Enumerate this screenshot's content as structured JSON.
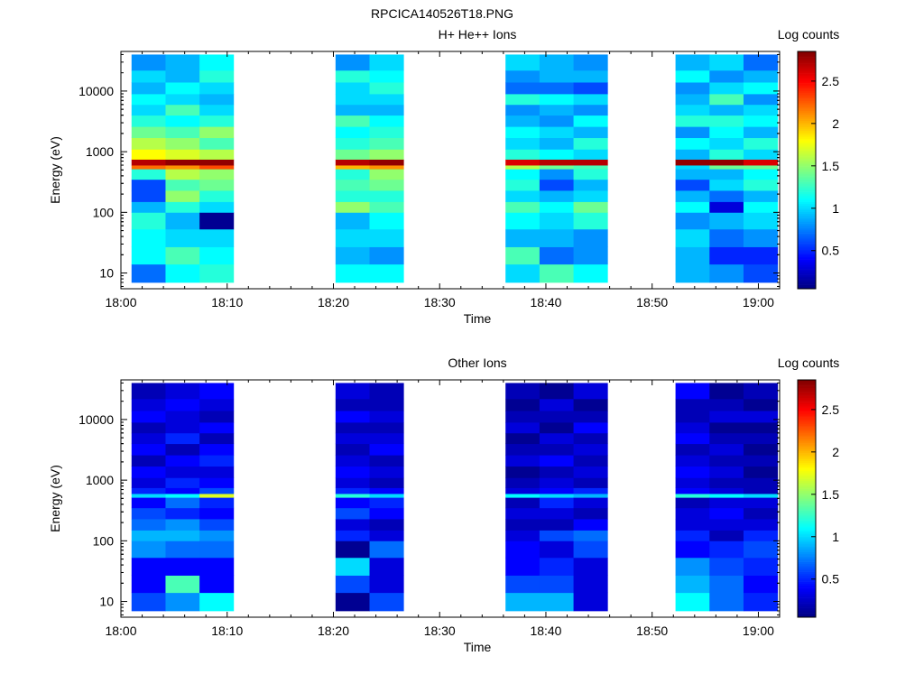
{
  "figure_title": "RPCICA140526T18.PNG",
  "colorbar_ticks": [
    "0.5",
    "1",
    "1.5",
    "2",
    "2.5"
  ],
  "colorbar_range": [
    0.05,
    2.85
  ],
  "chart_data": [
    {
      "type": "heatmap",
      "title": "H+ He++ Ions",
      "xlabel": "Time",
      "ylabel": "Energy (eV)",
      "colorbar_label": "Log counts",
      "x_range_min": [
        0,
        62
      ],
      "y_scale": "log",
      "y_range": [
        5.5,
        45000
      ],
      "x_ticks": [
        "18:00",
        "18:10",
        "18:20",
        "18:30",
        "18:40",
        "18:50",
        "19:00"
      ],
      "x_tick_values_min": [
        0,
        10,
        20,
        30,
        40,
        50,
        60
      ],
      "y_ticks": [
        "10",
        "100",
        "1000",
        "10000"
      ],
      "y_tick_values": [
        10,
        100,
        1000,
        10000
      ],
      "colormap": "jet",
      "time_bins_min": [
        [
          1,
          4.2
        ],
        [
          4.2,
          7.4
        ],
        [
          7.4,
          10.6
        ],
        [
          20.2,
          23.4
        ],
        [
          23.4,
          26.6
        ],
        [
          36.2,
          39.4
        ],
        [
          39.4,
          42.6
        ],
        [
          42.6,
          45.8
        ],
        [
          52.2,
          55.4
        ],
        [
          55.4,
          58.6
        ],
        [
          58.6,
          61.8
        ]
      ],
      "energy_bins_ev": [
        [
          7,
          14
        ],
        [
          14,
          27
        ],
        [
          27,
          53
        ],
        [
          53,
          100
        ],
        [
          100,
          150
        ],
        [
          150,
          230
        ],
        [
          230,
          350
        ],
        [
          350,
          520
        ],
        [
          520,
          600
        ],
        [
          600,
          750
        ],
        [
          750,
          1100
        ],
        [
          1100,
          1700
        ],
        [
          1700,
          2600
        ],
        [
          2600,
          4000
        ],
        [
          4000,
          6000
        ],
        [
          6000,
          9000
        ],
        [
          9000,
          14000
        ],
        [
          14000,
          22000
        ],
        [
          22000,
          40000
        ]
      ],
      "values_log_counts": [
        [
          0.7,
          1.1,
          1.1,
          1.2,
          0.9,
          0.6,
          0.6,
          1.2,
          2.2,
          2.7,
          1.8,
          1.6,
          1.4,
          1.2,
          1.0,
          1.1,
          0.9,
          1.0,
          0.8
        ],
        [
          1.1,
          1.3,
          1.0,
          0.9,
          1.2,
          1.5,
          1.3,
          1.6,
          2.1,
          2.8,
          1.7,
          1.5,
          1.3,
          1.1,
          1.3,
          1.0,
          1.1,
          0.9,
          0.9
        ],
        [
          1.2,
          1.1,
          1.0,
          0.1,
          1.0,
          1.2,
          1.4,
          1.5,
          2.3,
          2.8,
          1.6,
          1.3,
          1.5,
          1.2,
          1.0,
          0.9,
          1.0,
          1.2,
          1.1
        ],
        [
          1.1,
          0.9,
          1.0,
          0.9,
          1.5,
          1.2,
          1.3,
          1.2,
          2.0,
          2.7,
          1.4,
          1.2,
          1.1,
          1.3,
          0.9,
          1.0,
          1.0,
          1.2,
          0.8
        ],
        [
          1.1,
          0.8,
          1.0,
          1.1,
          1.3,
          1.2,
          1.4,
          1.5,
          2.1,
          2.8,
          1.5,
          1.3,
          1.2,
          1.1,
          0.9,
          1.0,
          1.2,
          1.1,
          1.0
        ],
        [
          1.0,
          1.3,
          0.9,
          1.1,
          1.3,
          1.0,
          1.2,
          1.1,
          1.6,
          2.6,
          1.2,
          1.0,
          1.1,
          0.9,
          0.8,
          1.2,
          0.7,
          0.8,
          1.0
        ],
        [
          1.3,
          0.7,
          0.9,
          1.0,
          1.1,
          0.9,
          0.6,
          0.8,
          1.4,
          2.7,
          1.1,
          0.9,
          1.0,
          0.8,
          0.9,
          1.1,
          0.7,
          0.9,
          0.9
        ],
        [
          1.1,
          0.8,
          0.8,
          1.2,
          1.4,
          1.0,
          0.9,
          1.2,
          1.3,
          2.7,
          1.0,
          1.2,
          0.9,
          1.1,
          0.8,
          1.0,
          0.6,
          0.9,
          0.8
        ],
        [
          0.9,
          0.9,
          1.0,
          0.8,
          1.1,
          0.9,
          0.6,
          0.9,
          1.0,
          2.8,
          0.9,
          1.1,
          0.8,
          1.2,
          1.0,
          0.9,
          0.8,
          1.1,
          0.9
        ],
        [
          0.8,
          0.5,
          0.7,
          0.9,
          0.3,
          0.7,
          1.0,
          0.9,
          1.4,
          2.8,
          1.2,
          1.0,
          1.1,
          1.2,
          0.9,
          1.3,
          1.0,
          0.8,
          1.0
        ],
        [
          0.6,
          0.5,
          0.8,
          1.0,
          1.1,
          0.9,
          1.2,
          1.1,
          1.4,
          2.6,
          1.0,
          1.2,
          0.9,
          1.1,
          1.0,
          0.8,
          1.1,
          0.9,
          0.7
        ]
      ]
    },
    {
      "type": "heatmap",
      "title": "Other Ions",
      "xlabel": "Time",
      "ylabel": "Energy (eV)",
      "colorbar_label": "Log counts",
      "x_range_min": [
        0,
        62
      ],
      "y_scale": "log",
      "y_range": [
        5.5,
        45000
      ],
      "x_ticks": [
        "18:00",
        "18:10",
        "18:20",
        "18:30",
        "18:40",
        "18:50",
        "19:00"
      ],
      "x_tick_values_min": [
        0,
        10,
        20,
        30,
        40,
        50,
        60
      ],
      "y_ticks": [
        "10",
        "100",
        "1000",
        "10000"
      ],
      "y_tick_values": [
        10,
        100,
        1000,
        10000
      ],
      "colormap": "jet",
      "time_bins_min": [
        [
          1,
          4.2
        ],
        [
          4.2,
          7.4
        ],
        [
          7.4,
          10.6
        ],
        [
          20.2,
          23.4
        ],
        [
          23.4,
          26.6
        ],
        [
          36.2,
          39.4
        ],
        [
          39.4,
          42.6
        ],
        [
          42.6,
          45.8
        ],
        [
          52.2,
          55.4
        ],
        [
          55.4,
          58.6
        ],
        [
          58.6,
          61.8
        ]
      ],
      "energy_bins_ev": [
        [
          7,
          14
        ],
        [
          14,
          27
        ],
        [
          27,
          53
        ],
        [
          53,
          100
        ],
        [
          100,
          150
        ],
        [
          150,
          230
        ],
        [
          230,
          350
        ],
        [
          350,
          520
        ],
        [
          520,
          600
        ],
        [
          600,
          750
        ],
        [
          750,
          1100
        ],
        [
          1100,
          1700
        ],
        [
          1700,
          2600
        ],
        [
          2600,
          4000
        ],
        [
          4000,
          6000
        ],
        [
          6000,
          9000
        ],
        [
          9000,
          14000
        ],
        [
          14000,
          22000
        ],
        [
          22000,
          40000
        ]
      ],
      "values_log_counts": [
        [
          0.6,
          0.4,
          0.4,
          0.8,
          0.9,
          0.7,
          0.6,
          0.4,
          1.0,
          0.5,
          0.3,
          0.4,
          0.2,
          0.4,
          0.3,
          0.2,
          0.4,
          0.3,
          0.2
        ],
        [
          0.8,
          1.3,
          0.4,
          0.7,
          0.9,
          0.8,
          0.5,
          0.7,
          1.1,
          0.4,
          0.5,
          0.3,
          0.4,
          0.2,
          0.5,
          0.3,
          0.3,
          0.4,
          0.3
        ],
        [
          1.1,
          0.4,
          0.4,
          0.7,
          0.8,
          0.6,
          0.4,
          0.5,
          1.7,
          0.6,
          0.4,
          0.3,
          0.5,
          0.4,
          0.2,
          0.4,
          0.2,
          0.3,
          0.4
        ],
        [
          0.1,
          0.6,
          1.0,
          0.1,
          0.5,
          0.3,
          0.6,
          0.4,
          1.2,
          0.5,
          0.3,
          0.4,
          0.3,
          0.2,
          0.3,
          0.2,
          0.4,
          0.2,
          0.3
        ],
        [
          0.6,
          0.3,
          0.3,
          0.7,
          0.3,
          0.2,
          0.4,
          0.5,
          1.0,
          0.4,
          0.2,
          0.3,
          0.2,
          0.4,
          0.3,
          0.2,
          0.3,
          0.2,
          0.2
        ],
        [
          0.9,
          0.6,
          0.4,
          0.4,
          0.3,
          0.2,
          0.3,
          0.2,
          1.1,
          0.3,
          0.2,
          0.1,
          0.3,
          0.2,
          0.1,
          0.3,
          0.2,
          0.1,
          0.2
        ],
        [
          0.9,
          0.6,
          0.5,
          0.3,
          0.6,
          0.2,
          0.3,
          0.5,
          1.0,
          0.4,
          0.3,
          0.2,
          0.4,
          0.2,
          0.3,
          0.1,
          0.2,
          0.3,
          0.1
        ],
        [
          0.3,
          0.3,
          0.3,
          0.6,
          0.7,
          0.4,
          0.2,
          0.3,
          0.9,
          0.5,
          0.2,
          0.3,
          0.2,
          0.3,
          0.2,
          0.4,
          0.2,
          0.1,
          0.3
        ],
        [
          1.1,
          0.9,
          0.8,
          0.4,
          0.5,
          0.3,
          0.3,
          0.2,
          1.2,
          0.4,
          0.3,
          0.4,
          0.3,
          0.2,
          0.4,
          0.3,
          0.2,
          0.2,
          0.4
        ],
        [
          0.7,
          0.7,
          0.6,
          0.5,
          0.2,
          0.3,
          0.4,
          0.3,
          1.1,
          0.3,
          0.2,
          0.3,
          0.2,
          0.3,
          0.2,
          0.1,
          0.3,
          0.2,
          0.1
        ],
        [
          0.5,
          0.4,
          0.5,
          0.6,
          0.5,
          0.3,
          0.2,
          0.3,
          1.0,
          0.2,
          0.2,
          0.1,
          0.2,
          0.1,
          0.2,
          0.1,
          0.3,
          0.1,
          0.2
        ]
      ]
    }
  ]
}
